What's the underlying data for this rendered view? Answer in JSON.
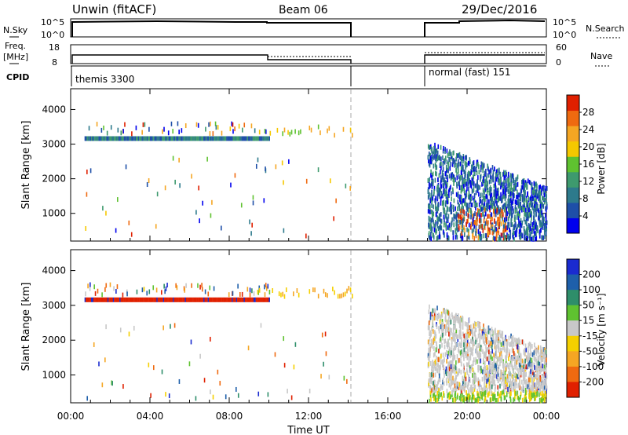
{
  "header": {
    "site": "Unwin (fitACF)",
    "beam": "Beam 06",
    "date": "29/Dec/2016"
  },
  "colors": {
    "power_scale": [
      "#0000ee",
      "#1e4fa8",
      "#2d7a8c",
      "#3e9a6e",
      "#5fc230",
      "#f5c800",
      "#f5a623",
      "#ef6a10",
      "#e02000"
    ],
    "velocity_scale": [
      "#1a2bd0",
      "#1e5faa",
      "#2e8e6a",
      "#5fc230",
      "#c8c8c8",
      "#f5d000",
      "#f5a623",
      "#ef6a10",
      "#e02000"
    ]
  },
  "strips": {
    "nsky": {
      "label": "N.Sky",
      "ticks": [
        "10^5",
        "10^0"
      ],
      "right_label": "N.Search"
    },
    "freq": {
      "label_top": "Freq.",
      "label_unit": "[MHz]",
      "ticks": [
        "18",
        "8"
      ],
      "right_ticks": [
        "60",
        "0"
      ],
      "right_label": "Nave"
    },
    "cpid": {
      "label": "CPID",
      "segments": [
        "themis 3300",
        "normal (fast) 151"
      ]
    }
  },
  "chart_data": [
    {
      "type": "heatmap",
      "panel": "power",
      "ylabel": "Slant Range [km]",
      "ylim": [
        200,
        4600
      ],
      "yticks": [
        "1000",
        "2000",
        "3000",
        "4000"
      ],
      "colorbar_label": "Power [dB]",
      "colorbar_ticks": [
        "4",
        "8",
        "12",
        "16",
        "20",
        "24",
        "28"
      ],
      "colorbar_range": [
        0,
        32
      ]
    },
    {
      "type": "heatmap",
      "panel": "velocity",
      "ylabel": "Slant Range [km]",
      "ylim": [
        200,
        4600
      ],
      "yticks": [
        "1000",
        "2000",
        "3000",
        "4000"
      ],
      "colorbar_label": "Velocity [m s⁻¹]",
      "colorbar_ticks": [
        "200",
        "100",
        "50",
        "15",
        "-15",
        "-50",
        "-100",
        "-200"
      ]
    }
  ],
  "time_axis": {
    "xlabel": "Time UT",
    "range_hours": [
      0,
      24
    ],
    "ticks": [
      "00:00",
      "04:00",
      "08:00",
      "12:00",
      "16:00",
      "20:00",
      "00:00"
    ],
    "data_gap_hours": [
      14.2,
      18.0
    ]
  }
}
